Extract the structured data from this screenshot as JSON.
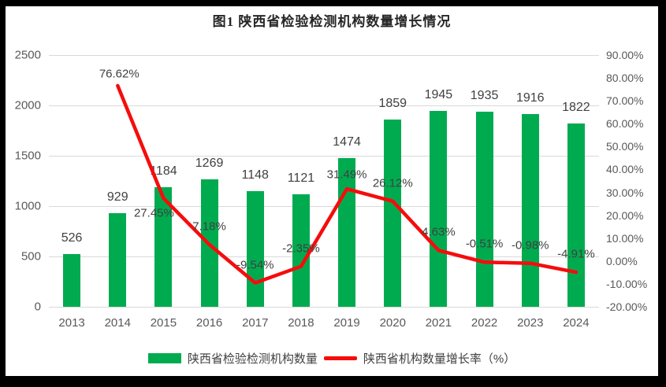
{
  "frame": {
    "background": "#000000",
    "panel_background": "#ffffff"
  },
  "chart": {
    "title": "图1 陕西省检验检测机构数量增长情况",
    "legend": [
      {
        "label": "陕西省检验检测机构数量",
        "marker": "bar-swatch"
      },
      {
        "label": "陕西省机构数量增长率（%）",
        "marker": "line-swatch"
      }
    ]
  },
  "chart_data": {
    "type": "combo-bar-line",
    "title": "图1 陕西省检验检测机构数量增长情况",
    "categories": [
      "2013",
      "2014",
      "2015",
      "2016",
      "2017",
      "2018",
      "2019",
      "2020",
      "2021",
      "2022",
      "2023",
      "2024"
    ],
    "series": [
      {
        "name": "陕西省检验检测机构数量",
        "type": "bar",
        "axis": "left",
        "color": "#00ab50",
        "values": [
          526,
          929,
          1184,
          1269,
          1148,
          1121,
          1474,
          1859,
          1945,
          1935,
          1916,
          1822
        ],
        "data_labels": [
          "526",
          "929",
          "1184",
          "1269",
          "1148",
          "1121",
          "1474",
          "1859",
          "1945",
          "1935",
          "1916",
          "1822"
        ]
      },
      {
        "name": "陕西省机构数量增长率（%）",
        "type": "line",
        "axis": "right",
        "color": "#f60c0c",
        "values": [
          null,
          76.62,
          27.45,
          7.18,
          -9.54,
          -2.35,
          31.49,
          26.12,
          4.63,
          -0.51,
          -0.98,
          -4.91
        ],
        "data_labels": [
          null,
          "76.62%",
          "27.45%",
          "7.18%",
          "-9.54%",
          "-2.35%",
          "31.49%",
          "26.12%",
          "4.63%",
          "-0.51%",
          "-0.98%",
          "-4.91%"
        ]
      }
    ],
    "left_axis": {
      "min": 0,
      "max": 2500,
      "step": 500,
      "tick_labels": [
        "0",
        "500",
        "1000",
        "1500",
        "2000",
        "2500"
      ]
    },
    "right_axis": {
      "min": -20,
      "max": 90,
      "step": 10,
      "tick_labels": [
        "-20.00%",
        "-10.00%",
        "0.00%",
        "10.00%",
        "20.00%",
        "30.00%",
        "40.00%",
        "50.00%",
        "60.00%",
        "70.00%",
        "80.00%",
        "90.00%"
      ]
    },
    "gridlines": "horizontal",
    "grid_color": "#d9d9d9",
    "legend_position": "bottom",
    "text_colors": {
      "title": "#262626",
      "ticks": "#595959",
      "data_labels": "#404040"
    }
  }
}
